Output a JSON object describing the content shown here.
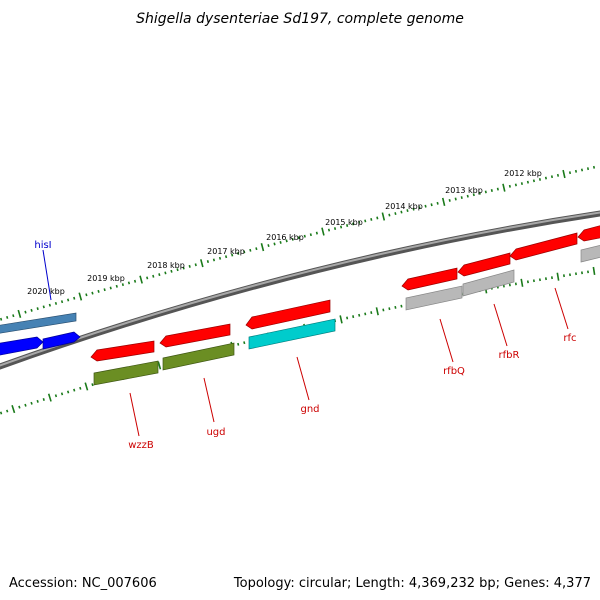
{
  "title": "Shigella dysenteriae Sd197, complete genome",
  "footer": {
    "accession": "Accession: NC_007606",
    "summary": "Topology: circular; Length: 4,369,232 bp; Genes: 4,377"
  },
  "scale_labels": [
    "2020 kbp",
    "2019 kbp",
    "2018 kbp",
    "2017 kbp",
    "2016 kbp",
    "2015 kbp",
    "2014 kbp",
    "2013 kbp",
    "2012 kbp"
  ],
  "gene_labels": [
    {
      "text": "hisI",
      "color": "#0000cc"
    },
    {
      "text": "wzzB",
      "color": "#cc0000"
    },
    {
      "text": "ugd",
      "color": "#cc0000"
    },
    {
      "text": "gnd",
      "color": "#cc0000"
    },
    {
      "text": "rfbQ",
      "color": "#cc0000"
    },
    {
      "text": "rfbR",
      "color": "#cc0000"
    },
    {
      "text": "rfc",
      "color": "#cc0000"
    }
  ],
  "colors": {
    "backbone": "#808080",
    "ticks": "#1a7a1a",
    "red": "#ff0000",
    "olive": "#6b8e23",
    "cyan": "#00cccc",
    "gray": "#b8b8b8",
    "steel": "#4682b4",
    "blue": "#0000ff"
  }
}
